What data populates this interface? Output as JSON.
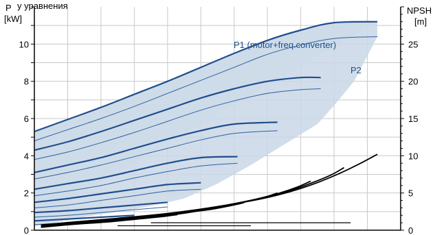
{
  "chart_data": {
    "type": "line",
    "title": "",
    "header_fragment": "у уравнения",
    "left_axis": {
      "label_line1": "P",
      "label_line2": "[kW]",
      "ylim": [
        0,
        12
      ],
      "ticks": [
        0,
        2,
        4,
        6,
        8,
        10
      ]
    },
    "right_axis": {
      "label_line1": "NPSH",
      "label_line2": "[m]",
      "ylim": [
        0,
        30
      ],
      "ticks": [
        0,
        5,
        10,
        15,
        20,
        25
      ]
    },
    "xlim": [
      0,
      11
    ],
    "grid": true,
    "colors": {
      "p1": "#1f4e8c",
      "p2": "#2d5f9c",
      "band": "#c9d7e6",
      "band_light": "#e6eef7",
      "npsh": "#000000",
      "grid": "#c8c8c8",
      "text_blue": "#1f4e8c"
    },
    "series_labels": {
      "p1": "P1 (motor+freq.converter)",
      "p2": "P2"
    },
    "p1_curves": [
      {
        "x": [
          0,
          1,
          2,
          3,
          4,
          5,
          6,
          7,
          8,
          9,
          10.3
        ],
        "y": [
          5.3,
          5.95,
          6.6,
          7.3,
          8.0,
          8.75,
          9.5,
          10.2,
          10.75,
          11.15,
          11.2
        ]
      },
      {
        "x": [
          0,
          1,
          2,
          3,
          4,
          5,
          6,
          7,
          8,
          8.6
        ],
        "y": [
          4.3,
          4.75,
          5.3,
          5.9,
          6.5,
          7.1,
          7.6,
          8.0,
          8.2,
          8.2
        ]
      },
      {
        "x": [
          0,
          1,
          2,
          3,
          4,
          5,
          6,
          7.3
        ],
        "y": [
          3.1,
          3.5,
          3.9,
          4.4,
          4.9,
          5.35,
          5.7,
          5.8
        ]
      },
      {
        "x": [
          0,
          1,
          2,
          3,
          4,
          5,
          6.1
        ],
        "y": [
          2.2,
          2.5,
          2.8,
          3.2,
          3.6,
          3.9,
          3.95
        ]
      },
      {
        "x": [
          0,
          1,
          2,
          3,
          4,
          5.0
        ],
        "y": [
          1.5,
          1.7,
          1.95,
          2.2,
          2.45,
          2.55
        ]
      },
      {
        "x": [
          0,
          1,
          2,
          3,
          4.0
        ],
        "y": [
          0.95,
          1.05,
          1.2,
          1.35,
          1.5
        ]
      },
      {
        "x": [
          0,
          1,
          2,
          3.0
        ],
        "y": [
          0.5,
          0.6,
          0.7,
          0.8
        ]
      }
    ],
    "p2_curves": [
      {
        "x": [
          0,
          1,
          2,
          3,
          4,
          5,
          6,
          7,
          8,
          9,
          10.3
        ],
        "y": [
          4.8,
          5.4,
          6.0,
          6.65,
          7.35,
          8.05,
          8.75,
          9.45,
          9.95,
          10.3,
          10.4
        ]
      },
      {
        "x": [
          0,
          1,
          2,
          3,
          4,
          5,
          6,
          7,
          8,
          8.6
        ],
        "y": [
          3.8,
          4.2,
          4.7,
          5.25,
          5.85,
          6.45,
          6.95,
          7.35,
          7.55,
          7.6
        ]
      },
      {
        "x": [
          0,
          1,
          2,
          3,
          4,
          5,
          6,
          7.3
        ],
        "y": [
          2.75,
          3.1,
          3.5,
          3.95,
          4.4,
          4.85,
          5.2,
          5.35
        ]
      },
      {
        "x": [
          0,
          1,
          2,
          3,
          4,
          5,
          6.1
        ],
        "y": [
          1.85,
          2.1,
          2.4,
          2.8,
          3.15,
          3.45,
          3.6
        ]
      },
      {
        "x": [
          0,
          1,
          2,
          3,
          4,
          5.0
        ],
        "y": [
          1.2,
          1.35,
          1.6,
          1.85,
          2.1,
          2.2
        ]
      },
      {
        "x": [
          0,
          1,
          2,
          3,
          4.0
        ],
        "y": [
          0.7,
          0.8,
          0.95,
          1.1,
          1.25
        ]
      },
      {
        "x": [
          0,
          1,
          2,
          3.0
        ],
        "y": [
          0.3,
          0.4,
          0.5,
          0.6
        ]
      }
    ],
    "band_upper": {
      "x": [
        0,
        1,
        2,
        3,
        4,
        5,
        6,
        7,
        8,
        9,
        10.3
      ],
      "y": [
        5.3,
        5.95,
        6.6,
        7.3,
        8.0,
        8.75,
        9.5,
        10.2,
        10.75,
        11.15,
        11.2
      ]
    },
    "band_lower": {
      "x": [
        10.3,
        9.6,
        9.0,
        8.5,
        7.5,
        6.5,
        5.5,
        4.5,
        3.5,
        2.6,
        1.8,
        1.2,
        0.6,
        0
      ],
      "y": [
        10.4,
        8.0,
        6.7,
        5.7,
        4.6,
        3.5,
        2.5,
        1.7,
        1.3,
        1.0,
        0.8,
        0.6,
        0.4,
        0.2
      ]
    },
    "npsh_curves": [
      {
        "x": [
          10.3,
          9.8,
          9.2,
          8.5,
          7.7,
          6.8,
          5.8,
          4.8,
          3.8,
          2.6,
          1.2,
          0.2
        ],
        "y": [
          10.2,
          9.0,
          7.7,
          6.4,
          5.2,
          4.2,
          3.4,
          2.7,
          2.1,
          1.6,
          1.1,
          0.7
        ]
      },
      {
        "x": [
          9.3,
          8.9,
          8.3,
          7.6,
          6.8,
          5.8,
          4.8,
          3.7,
          2.5,
          1.2,
          0.2
        ],
        "y": [
          8.4,
          7.4,
          6.3,
          5.2,
          4.3,
          3.4,
          2.7,
          2.1,
          1.6,
          1.1,
          0.7
        ]
      },
      {
        "x": [
          8.3,
          7.9,
          7.3,
          6.6,
          5.8,
          4.8,
          3.8,
          2.6,
          1.3,
          0.2
        ],
        "y": [
          6.6,
          5.8,
          4.9,
          4.1,
          3.3,
          2.6,
          2.0,
          1.5,
          1.0,
          0.6
        ]
      },
      {
        "x": [
          7.3,
          6.9,
          6.3,
          5.6,
          4.8,
          3.8,
          2.7,
          1.4,
          0.2
        ],
        "y": [
          5.0,
          4.4,
          3.8,
          3.2,
          2.6,
          2.0,
          1.5,
          1.0,
          0.5
        ]
      },
      {
        "x": [
          6.3,
          5.9,
          5.3,
          4.6,
          3.8,
          2.8,
          1.6,
          0.3
        ],
        "y": [
          3.7,
          3.3,
          2.8,
          2.4,
          1.9,
          1.5,
          1.0,
          0.5
        ]
      },
      {
        "x": [
          5.3,
          4.8,
          4.2,
          3.4,
          2.4,
          1.3,
          0.2
        ],
        "y": [
          2.9,
          2.5,
          2.1,
          1.7,
          1.3,
          0.9,
          0.4
        ]
      },
      {
        "x": [
          4.3,
          3.8,
          3.1,
          2.2,
          1.2,
          0.2
        ],
        "y": [
          2.1,
          1.8,
          1.5,
          1.1,
          0.8,
          0.4
        ]
      }
    ],
    "npsh_flat": [
      {
        "x": [
          3.5,
          9.5
        ],
        "y": [
          1.0,
          1.0
        ]
      },
      {
        "x": [
          2.5,
          6.5
        ],
        "y": [
          0.6,
          0.6
        ]
      }
    ]
  }
}
